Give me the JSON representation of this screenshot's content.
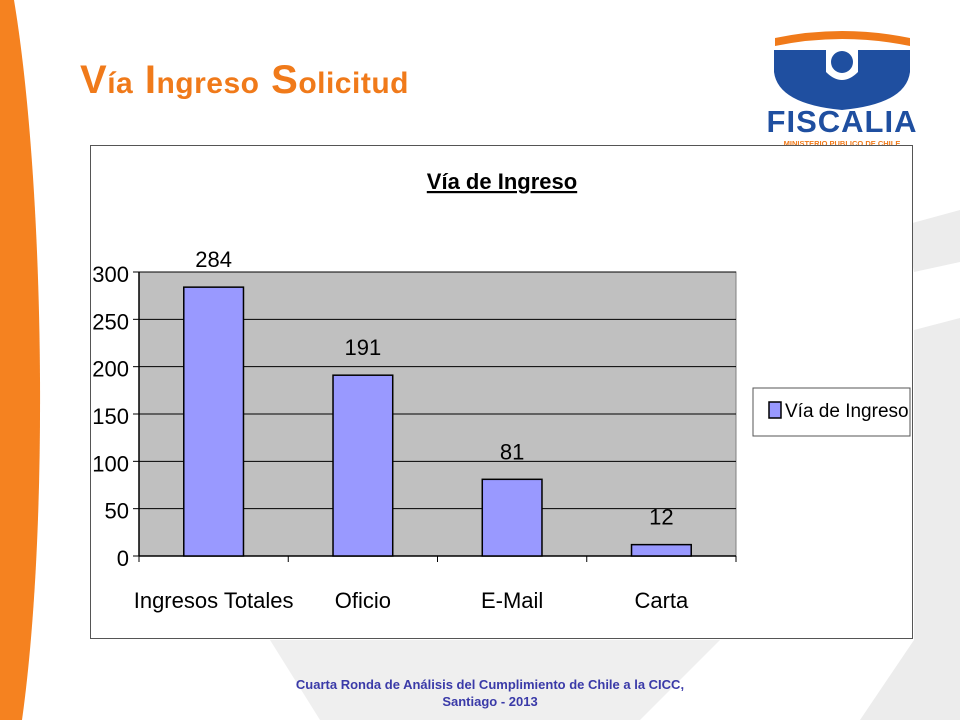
{
  "slide": {
    "title_first": "V",
    "title_first_rest": "ía",
    "title_second": "I",
    "title_second_rest": "ngreso",
    "title_third": "S",
    "title_third_rest": "olicitud"
  },
  "logo": {
    "name": "FISCALIA",
    "subtitle": "MINISTERIO PUBLICO DE CHILE",
    "color_blue": "#1f4fa0",
    "color_orange": "#f07a1a"
  },
  "footer": {
    "line1": "Cuarta Ronda de Análisis del Cumplimiento de Chile a la CICC,",
    "line2": "Santiago - 2013"
  },
  "chart_data": {
    "type": "bar",
    "title": "Vía de Ingreso",
    "categories": [
      "Ingresos Totales",
      "Oficio",
      "E-Mail",
      "Carta"
    ],
    "series": [
      {
        "name": "Vía de Ingreso",
        "values": [
          284,
          191,
          81,
          12
        ],
        "color": "#9999ff"
      }
    ],
    "data_labels": [
      "284",
      "191",
      "81",
      "12"
    ],
    "y_ticks": [
      "0",
      "50",
      "100",
      "150",
      "200",
      "250",
      "300"
    ],
    "ylim": [
      0,
      300
    ],
    "grid": true,
    "plot_background": "#c0c0c0",
    "legend_position": "right"
  }
}
